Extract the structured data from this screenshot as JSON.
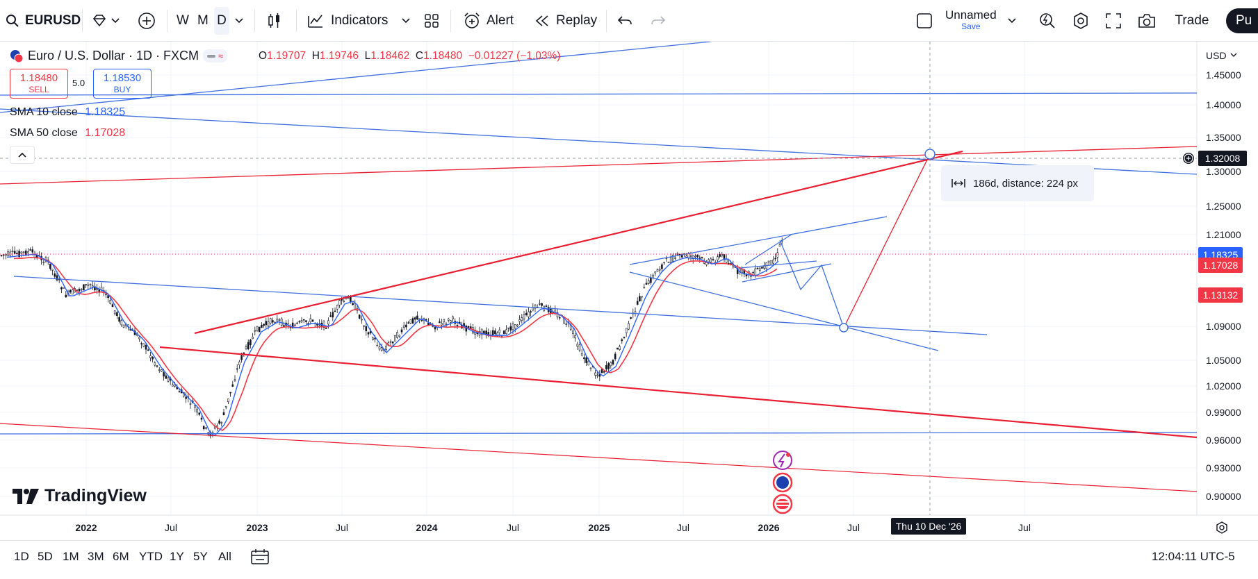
{
  "toolbar": {
    "symbol": "EURUSD",
    "intervals": [
      "W",
      "M",
      "D"
    ],
    "indicators_label": "Indicators",
    "alert_label": "Alert",
    "replay_label": "Replay",
    "layout_name": "Unnamed",
    "save_label": "Save",
    "trade_label": "Trade",
    "publish_label": "Pu"
  },
  "legend": {
    "title": "Euro / U.S. Dollar · 1D · FXCM",
    "open_key": "O",
    "open_value": "1.19707",
    "high_key": "H",
    "high_value": "1.19746",
    "low_key": "L",
    "low_value": "1.18462",
    "close_key": "C",
    "close_value": "1.18480",
    "change": "−0.01227 (−1.03%)",
    "sell_price": "1.18480",
    "sell_label": "SELL",
    "spread": "5.0",
    "buy_price": "1.18530",
    "buy_label": "BUY",
    "sma10_label": "SMA 10 close",
    "sma10_value": "1.18325",
    "sma50_label": "SMA 50 close",
    "sma50_value": "1.17028"
  },
  "price_axis": {
    "currency": "USD",
    "ticks": [
      "1.45000",
      "1.40000",
      "1.35000",
      "1.30000",
      "1.25000",
      "1.21000",
      "1.09000",
      "1.05000",
      "1.02000",
      "0.99000",
      "0.96000",
      "0.93000",
      "0.90000"
    ],
    "crosshair_price": "1.32008",
    "sma10_badge": "1.18325",
    "sma50_badge": "1.17028",
    "level_badge": "1.13132"
  },
  "time_axis": {
    "ticks": [
      "2022",
      "Jul",
      "2023",
      "Jul",
      "2024",
      "Jul",
      "2025",
      "Jul",
      "2026",
      "Jul",
      "Jul"
    ],
    "crosshair_date": "Thu 10 Dec '26"
  },
  "measure_tooltip": "186d, distance: 224 px",
  "branding": "TradingView",
  "ranges": [
    "1D",
    "5D",
    "1M",
    "3M",
    "6M",
    "YTD",
    "1Y",
    "5Y",
    "All"
  ],
  "clock": "12:04:11 UTC-5",
  "colors": {
    "red": "#f23645",
    "blue": "#2962ff",
    "draw_red": "#e91e30",
    "draw_blue": "#3d6fe0"
  }
}
